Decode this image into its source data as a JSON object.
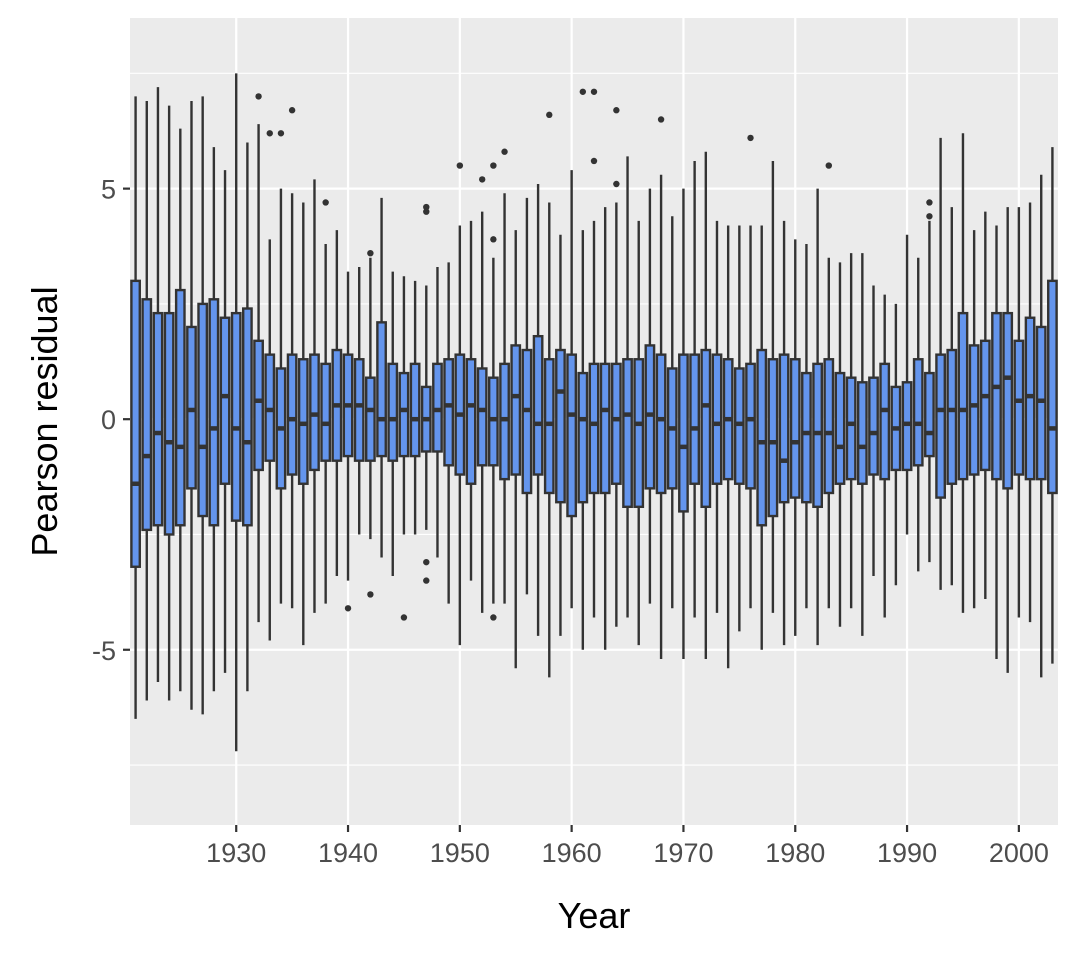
{
  "chart_data": {
    "type": "boxplot",
    "xlabel": "Year",
    "ylabel": "Pearson residual",
    "xlim": [
      1920.5,
      2003.5
    ],
    "ylim": [
      -8.8,
      8.7
    ],
    "x_ticks": [
      1930,
      1940,
      1950,
      1960,
      1970,
      1980,
      1990,
      2000
    ],
    "y_ticks": [
      -5,
      0,
      5
    ],
    "y_minor_ticks": [
      -7.5,
      -2.5,
      2.5,
      7.5
    ],
    "grid": true,
    "legend": "none",
    "box_fill": "#6495ED",
    "line_color": "#333333",
    "panel_bg": "#EBEBEB",
    "boxes": [
      {
        "x": 1921,
        "whisker_low": -6.5,
        "q1": -3.2,
        "median": -1.4,
        "q3": 3.0,
        "whisker_high": 7.0
      },
      {
        "x": 1922,
        "whisker_low": -6.1,
        "q1": -2.4,
        "median": -0.8,
        "q3": 2.6,
        "whisker_high": 6.9
      },
      {
        "x": 1923,
        "whisker_low": -5.7,
        "q1": -2.3,
        "median": -0.3,
        "q3": 2.3,
        "whisker_high": 7.2
      },
      {
        "x": 1924,
        "whisker_low": -6.1,
        "q1": -2.5,
        "median": -0.5,
        "q3": 2.3,
        "whisker_high": 6.8
      },
      {
        "x": 1925,
        "whisker_low": -5.9,
        "q1": -2.3,
        "median": -0.6,
        "q3": 2.8,
        "whisker_high": 6.3
      },
      {
        "x": 1926,
        "whisker_low": -6.3,
        "q1": -1.5,
        "median": 0.2,
        "q3": 2.0,
        "whisker_high": 6.9
      },
      {
        "x": 1927,
        "whisker_low": -6.4,
        "q1": -2.1,
        "median": -0.6,
        "q3": 2.5,
        "whisker_high": 7.0
      },
      {
        "x": 1928,
        "whisker_low": -5.9,
        "q1": -2.3,
        "median": -0.2,
        "q3": 2.6,
        "whisker_high": 5.9
      },
      {
        "x": 1929,
        "whisker_low": -5.5,
        "q1": -1.4,
        "median": 0.5,
        "q3": 2.2,
        "whisker_high": 5.4
      },
      {
        "x": 1930,
        "whisker_low": -7.2,
        "q1": -2.2,
        "median": -0.2,
        "q3": 2.3,
        "whisker_high": 7.5
      },
      {
        "x": 1931,
        "whisker_low": -5.9,
        "q1": -2.3,
        "median": -0.5,
        "q3": 2.4,
        "whisker_high": 6.0
      },
      {
        "x": 1932,
        "whisker_low": -4.4,
        "q1": -1.1,
        "median": 0.4,
        "q3": 1.7,
        "whisker_high": 6.4
      },
      {
        "x": 1933,
        "whisker_low": -4.8,
        "q1": -0.9,
        "median": 0.2,
        "q3": 1.4,
        "whisker_high": 3.9
      },
      {
        "x": 1934,
        "whisker_low": -4.0,
        "q1": -1.5,
        "median": -0.2,
        "q3": 1.1,
        "whisker_high": 5.0
      },
      {
        "x": 1935,
        "whisker_low": -4.1,
        "q1": -1.2,
        "median": 0.0,
        "q3": 1.4,
        "whisker_high": 4.9
      },
      {
        "x": 1936,
        "whisker_low": -4.9,
        "q1": -1.4,
        "median": -0.1,
        "q3": 1.3,
        "whisker_high": 4.7
      },
      {
        "x": 1937,
        "whisker_low": -4.2,
        "q1": -1.1,
        "median": 0.1,
        "q3": 1.4,
        "whisker_high": 5.2
      },
      {
        "x": 1938,
        "whisker_low": -4.0,
        "q1": -0.9,
        "median": -0.1,
        "q3": 1.2,
        "whisker_high": 3.8
      },
      {
        "x": 1939,
        "whisker_low": -3.4,
        "q1": -0.9,
        "median": 0.3,
        "q3": 1.5,
        "whisker_high": 4.1
      },
      {
        "x": 1940,
        "whisker_low": -3.5,
        "q1": -0.8,
        "median": 0.3,
        "q3": 1.4,
        "whisker_high": 3.2
      },
      {
        "x": 1941,
        "whisker_low": -2.5,
        "q1": -0.9,
        "median": 0.3,
        "q3": 1.3,
        "whisker_high": 3.3
      },
      {
        "x": 1942,
        "whisker_low": -2.6,
        "q1": -0.9,
        "median": 0.2,
        "q3": 0.9,
        "whisker_high": 3.5
      },
      {
        "x": 1943,
        "whisker_low": -3.0,
        "q1": -0.8,
        "median": 0.0,
        "q3": 2.1,
        "whisker_high": 4.8
      },
      {
        "x": 1944,
        "whisker_low": -3.4,
        "q1": -0.9,
        "median": 0.0,
        "q3": 1.2,
        "whisker_high": 3.2
      },
      {
        "x": 1945,
        "whisker_low": -2.5,
        "q1": -0.8,
        "median": 0.2,
        "q3": 1.0,
        "whisker_high": 3.1
      },
      {
        "x": 1946,
        "whisker_low": -2.5,
        "q1": -0.8,
        "median": 0.0,
        "q3": 1.2,
        "whisker_high": 3.0
      },
      {
        "x": 1947,
        "whisker_low": -2.4,
        "q1": -0.7,
        "median": 0.0,
        "q3": 0.7,
        "whisker_high": 2.9
      },
      {
        "x": 1948,
        "whisker_low": -3.0,
        "q1": -0.7,
        "median": 0.2,
        "q3": 1.2,
        "whisker_high": 3.3
      },
      {
        "x": 1949,
        "whisker_low": -4.0,
        "q1": -1.0,
        "median": 0.3,
        "q3": 1.3,
        "whisker_high": 3.4
      },
      {
        "x": 1950,
        "whisker_low": -4.9,
        "q1": -1.2,
        "median": 0.1,
        "q3": 1.4,
        "whisker_high": 4.2
      },
      {
        "x": 1951,
        "whisker_low": -3.5,
        "q1": -1.4,
        "median": 0.3,
        "q3": 1.3,
        "whisker_high": 4.3
      },
      {
        "x": 1952,
        "whisker_low": -4.2,
        "q1": -1.0,
        "median": 0.2,
        "q3": 1.1,
        "whisker_high": 4.5
      },
      {
        "x": 1953,
        "whisker_low": -4.0,
        "q1": -1.0,
        "median": 0.0,
        "q3": 0.9,
        "whisker_high": 3.5
      },
      {
        "x": 1954,
        "whisker_low": -4.0,
        "q1": -1.3,
        "median": 0.0,
        "q3": 1.2,
        "whisker_high": 4.9
      },
      {
        "x": 1955,
        "whisker_low": -5.4,
        "q1": -1.2,
        "median": 0.5,
        "q3": 1.6,
        "whisker_high": 4.1
      },
      {
        "x": 1956,
        "whisker_low": -3.8,
        "q1": -1.6,
        "median": 0.2,
        "q3": 1.5,
        "whisker_high": 4.8
      },
      {
        "x": 1957,
        "whisker_low": -4.7,
        "q1": -1.2,
        "median": -0.1,
        "q3": 1.8,
        "whisker_high": 5.1
      },
      {
        "x": 1958,
        "whisker_low": -5.6,
        "q1": -1.6,
        "median": -0.1,
        "q3": 1.3,
        "whisker_high": 4.7
      },
      {
        "x": 1959,
        "whisker_low": -4.7,
        "q1": -1.8,
        "median": 0.6,
        "q3": 1.5,
        "whisker_high": 4.0
      },
      {
        "x": 1960,
        "whisker_low": -4.1,
        "q1": -2.1,
        "median": 0.1,
        "q3": 1.4,
        "whisker_high": 5.4
      },
      {
        "x": 1961,
        "whisker_low": -5.0,
        "q1": -1.8,
        "median": 0.0,
        "q3": 1.0,
        "whisker_high": 4.1
      },
      {
        "x": 1962,
        "whisker_low": -4.3,
        "q1": -1.6,
        "median": -0.1,
        "q3": 1.2,
        "whisker_high": 4.3
      },
      {
        "x": 1963,
        "whisker_low": -5.0,
        "q1": -1.6,
        "median": 0.2,
        "q3": 1.2,
        "whisker_high": 4.6
      },
      {
        "x": 1964,
        "whisker_low": -4.5,
        "q1": -1.4,
        "median": 0.0,
        "q3": 1.2,
        "whisker_high": 4.7
      },
      {
        "x": 1965,
        "whisker_low": -4.3,
        "q1": -1.9,
        "median": 0.1,
        "q3": 1.3,
        "whisker_high": 5.7
      },
      {
        "x": 1966,
        "whisker_low": -4.9,
        "q1": -1.9,
        "median": -0.1,
        "q3": 1.3,
        "whisker_high": 4.3
      },
      {
        "x": 1967,
        "whisker_low": -4.0,
        "q1": -1.5,
        "median": 0.1,
        "q3": 1.6,
        "whisker_high": 5.0
      },
      {
        "x": 1968,
        "whisker_low": -5.2,
        "q1": -1.6,
        "median": 0.0,
        "q3": 1.4,
        "whisker_high": 5.3
      },
      {
        "x": 1969,
        "whisker_low": -4.1,
        "q1": -1.5,
        "median": -0.2,
        "q3": 1.1,
        "whisker_high": 4.4
      },
      {
        "x": 1970,
        "whisker_low": -5.2,
        "q1": -2.0,
        "median": -0.6,
        "q3": 1.4,
        "whisker_high": 5.0
      },
      {
        "x": 1971,
        "whisker_low": -4.3,
        "q1": -1.4,
        "median": -0.2,
        "q3": 1.4,
        "whisker_high": 5.6
      },
      {
        "x": 1972,
        "whisker_low": -5.2,
        "q1": -1.9,
        "median": 0.3,
        "q3": 1.5,
        "whisker_high": 5.8
      },
      {
        "x": 1973,
        "whisker_low": -4.2,
        "q1": -1.4,
        "median": -0.1,
        "q3": 1.4,
        "whisker_high": 4.3
      },
      {
        "x": 1974,
        "whisker_low": -5.4,
        "q1": -1.3,
        "median": 0.0,
        "q3": 1.3,
        "whisker_high": 4.2
      },
      {
        "x": 1975,
        "whisker_low": -4.6,
        "q1": -1.4,
        "median": -0.1,
        "q3": 1.1,
        "whisker_high": 4.2
      },
      {
        "x": 1976,
        "whisker_low": -4.1,
        "q1": -1.5,
        "median": 0.0,
        "q3": 1.2,
        "whisker_high": 4.2
      },
      {
        "x": 1977,
        "whisker_low": -5.0,
        "q1": -2.3,
        "median": -0.5,
        "q3": 1.5,
        "whisker_high": 4.2
      },
      {
        "x": 1978,
        "whisker_low": -4.2,
        "q1": -2.1,
        "median": -0.5,
        "q3": 1.3,
        "whisker_high": 5.6
      },
      {
        "x": 1979,
        "whisker_low": -4.9,
        "q1": -1.8,
        "median": -0.9,
        "q3": 1.4,
        "whisker_high": 4.3
      },
      {
        "x": 1980,
        "whisker_low": -4.7,
        "q1": -1.7,
        "median": -0.5,
        "q3": 1.3,
        "whisker_high": 3.9
      },
      {
        "x": 1981,
        "whisker_low": -4.1,
        "q1": -1.8,
        "median": -0.3,
        "q3": 1.0,
        "whisker_high": 3.8
      },
      {
        "x": 1982,
        "whisker_low": -4.9,
        "q1": -1.9,
        "median": -0.3,
        "q3": 1.2,
        "whisker_high": 5.0
      },
      {
        "x": 1983,
        "whisker_low": -4.1,
        "q1": -1.6,
        "median": -0.3,
        "q3": 1.3,
        "whisker_high": 3.5
      },
      {
        "x": 1984,
        "whisker_low": -4.5,
        "q1": -1.4,
        "median": -0.6,
        "q3": 1.0,
        "whisker_high": 3.4
      },
      {
        "x": 1985,
        "whisker_low": -4.1,
        "q1": -1.3,
        "median": -0.1,
        "q3": 0.9,
        "whisker_high": 3.6
      },
      {
        "x": 1986,
        "whisker_low": -4.7,
        "q1": -1.4,
        "median": -0.6,
        "q3": 0.8,
        "whisker_high": 3.6
      },
      {
        "x": 1987,
        "whisker_low": -3.4,
        "q1": -1.2,
        "median": -0.3,
        "q3": 0.9,
        "whisker_high": 2.9
      },
      {
        "x": 1988,
        "whisker_low": -4.3,
        "q1": -1.3,
        "median": 0.2,
        "q3": 1.2,
        "whisker_high": 2.7
      },
      {
        "x": 1989,
        "whisker_low": -3.6,
        "q1": -1.1,
        "median": -0.2,
        "q3": 0.7,
        "whisker_high": 2.5
      },
      {
        "x": 1990,
        "whisker_low": -2.5,
        "q1": -1.1,
        "median": -0.1,
        "q3": 0.8,
        "whisker_high": 4.0
      },
      {
        "x": 1991,
        "whisker_low": -3.3,
        "q1": -1.0,
        "median": -0.1,
        "q3": 1.3,
        "whisker_high": 3.5
      },
      {
        "x": 1992,
        "whisker_low": -3.1,
        "q1": -0.8,
        "median": -0.3,
        "q3": 1.0,
        "whisker_high": 4.3
      },
      {
        "x": 1993,
        "whisker_low": -3.7,
        "q1": -1.7,
        "median": 0.2,
        "q3": 1.4,
        "whisker_high": 6.1
      },
      {
        "x": 1994,
        "whisker_low": -3.6,
        "q1": -1.4,
        "median": 0.2,
        "q3": 1.5,
        "whisker_high": 4.6
      },
      {
        "x": 1995,
        "whisker_low": -4.2,
        "q1": -1.3,
        "median": 0.2,
        "q3": 2.3,
        "whisker_high": 6.2
      },
      {
        "x": 1996,
        "whisker_low": -4.1,
        "q1": -1.2,
        "median": 0.3,
        "q3": 1.6,
        "whisker_high": 4.1
      },
      {
        "x": 1997,
        "whisker_low": -3.9,
        "q1": -1.1,
        "median": 0.5,
        "q3": 1.7,
        "whisker_high": 4.5
      },
      {
        "x": 1998,
        "whisker_low": -5.2,
        "q1": -1.3,
        "median": 0.7,
        "q3": 2.3,
        "whisker_high": 4.2
      },
      {
        "x": 1999,
        "whisker_low": -5.5,
        "q1": -1.5,
        "median": 0.9,
        "q3": 2.3,
        "whisker_high": 4.6
      },
      {
        "x": 2000,
        "whisker_low": -4.3,
        "q1": -1.2,
        "median": 0.4,
        "q3": 1.7,
        "whisker_high": 4.6
      },
      {
        "x": 2001,
        "whisker_low": -4.4,
        "q1": -1.3,
        "median": 0.5,
        "q3": 2.2,
        "whisker_high": 4.7
      },
      {
        "x": 2002,
        "whisker_low": -5.6,
        "q1": -1.3,
        "median": 0.4,
        "q3": 2.0,
        "whisker_high": 5.3
      },
      {
        "x": 2003,
        "whisker_low": -5.3,
        "q1": -1.6,
        "median": -0.2,
        "q3": 3.0,
        "whisker_high": 5.9
      }
    ],
    "outliers": [
      {
        "x": 1932,
        "y": 7.0
      },
      {
        "x": 1933,
        "y": 6.2
      },
      {
        "x": 1934,
        "y": 6.2
      },
      {
        "x": 1935,
        "y": 6.7
      },
      {
        "x": 1938,
        "y": 4.7
      },
      {
        "x": 1940,
        "y": -4.1
      },
      {
        "x": 1942,
        "y": 3.6
      },
      {
        "x": 1942,
        "y": -3.8
      },
      {
        "x": 1945,
        "y": -4.3
      },
      {
        "x": 1947,
        "y": 4.6
      },
      {
        "x": 1947,
        "y": 4.5
      },
      {
        "x": 1947,
        "y": -3.1
      },
      {
        "x": 1947,
        "y": -3.5
      },
      {
        "x": 1950,
        "y": 5.5
      },
      {
        "x": 1952,
        "y": 5.2
      },
      {
        "x": 1953,
        "y": 5.5
      },
      {
        "x": 1953,
        "y": 3.9
      },
      {
        "x": 1953,
        "y": -4.3
      },
      {
        "x": 1954,
        "y": 5.8
      },
      {
        "x": 1958,
        "y": 6.6
      },
      {
        "x": 1961,
        "y": 7.1
      },
      {
        "x": 1962,
        "y": 7.1
      },
      {
        "x": 1962,
        "y": 5.6
      },
      {
        "x": 1964,
        "y": 6.7
      },
      {
        "x": 1964,
        "y": 5.1
      },
      {
        "x": 1968,
        "y": 6.5
      },
      {
        "x": 1976,
        "y": 6.1
      },
      {
        "x": 1983,
        "y": 5.5
      },
      {
        "x": 1992,
        "y": 4.7
      },
      {
        "x": 1992,
        "y": 4.4
      }
    ]
  }
}
